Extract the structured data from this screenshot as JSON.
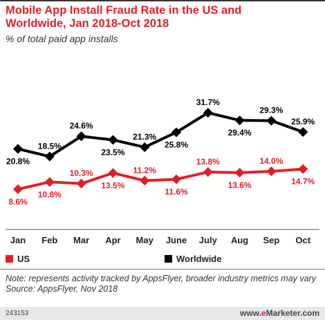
{
  "header": {
    "title": "Mobile App Install Fraud Rate in the US and Worldwide, Jan 2018-Oct 2018",
    "subtitle": "% of total paid app installs"
  },
  "legend": {
    "us_label": "US",
    "worldwide_label": "Worldwide"
  },
  "note": "Note: represents activity tracked by AppsFlyer, broader industry metrics may vary",
  "source": "Source: AppsFlyer, Nov 2018",
  "footer": {
    "chart_id": "243153",
    "brand_e": "e",
    "brand_rest": "Marketer",
    "brand_suffix": ".com"
  },
  "colors": {
    "us": "#e21f26",
    "worldwide": "#000000"
  },
  "chart_data": {
    "type": "line",
    "title": "Mobile App Install Fraud Rate in the US and Worldwide, Jan 2018-Oct 2018",
    "subtitle": "% of total paid app installs",
    "categories": [
      "Jan",
      "Feb",
      "Mar",
      "Apr",
      "May",
      "June",
      "July",
      "Aug",
      "Sep",
      "Oct"
    ],
    "series": [
      {
        "name": "Worldwide",
        "values": [
          20.8,
          18.5,
          24.6,
          23.5,
          21.3,
          25.8,
          31.7,
          29.4,
          29.3,
          25.9
        ],
        "labels": [
          "20.8%",
          "18.5%",
          "24.6%",
          "23.5%",
          "21.3%",
          "25.8%",
          "31.7%",
          "29.4%",
          "29.3%",
          "25.9%"
        ]
      },
      {
        "name": "US",
        "values": [
          8.6,
          10.8,
          10.3,
          13.5,
          11.2,
          11.6,
          13.8,
          13.6,
          14.0,
          14.7
        ],
        "labels": [
          "8.6%",
          "10.8%",
          "10.3%",
          "13.5%",
          "11.2%",
          "11.6%",
          "13.8%",
          "13.6%",
          "14.0%",
          "14.7%"
        ]
      }
    ],
    "xlabel": "",
    "ylabel": "",
    "ylim": [
      0,
      40
    ],
    "grid": false,
    "legend_position": "bottom"
  }
}
